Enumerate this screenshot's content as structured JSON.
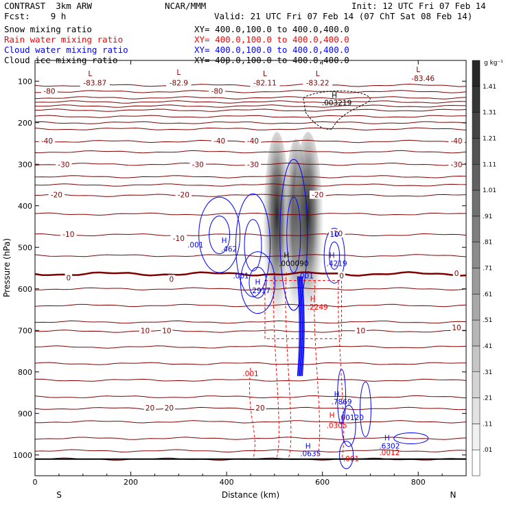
{
  "header": {
    "model": "CONTRAST  3km ARW",
    "org": "NCAR/MMM",
    "init": "Init: 12 UTC Fri 07 Feb 14",
    "fcst": "Fcst:    9 h",
    "valid": "Valid: 21 UTC Fri 07 Feb 14 (07 ChT Sat 08 Feb 14)",
    "fields": [
      {
        "name": "Snow mixing ratio",
        "xy": "XY= 400.0,100.0 to 400.0,400.0",
        "color": "#000000"
      },
      {
        "name": "Rain water mixing ratio",
        "xy": "XY= 400.0,100.0 to 400.0,400.0",
        "color": "#ff0000"
      },
      {
        "name": "Cloud water mixing ratio",
        "xy": "XY= 400.0,100.0 to 400.0,400.0",
        "color": "#0000ff"
      },
      {
        "name": "Cloud ice mixing ratio",
        "xy": "XY= 400.0,100.0 to 400.0,400.0",
        "color": "#000000"
      }
    ]
  },
  "chart_data": {
    "type": "cross-section contour",
    "xlabel": "Distance (km)",
    "ylabel": "Pressure (hPa)",
    "xlim": [
      0,
      900
    ],
    "ylim": [
      1050,
      50
    ],
    "x_ticks": [
      0,
      200,
      400,
      600,
      800
    ],
    "y_ticks": [
      100,
      200,
      300,
      400,
      500,
      600,
      700,
      800,
      900,
      1000
    ],
    "x_end_labels": {
      "left": "S",
      "right": "N"
    },
    "colorbar": {
      "unit": "g kg⁻¹",
      "levels": [
        ".01",
        ".11",
        ".21",
        ".31",
        ".41",
        ".51",
        ".61",
        ".71",
        ".81",
        ".91",
        "1.01",
        "1.11",
        "1.21",
        "1.31",
        "1.41"
      ]
    },
    "temperature_contours": {
      "color": "#800000",
      "bold_level": 0,
      "labels": [
        {
          "text": "-80",
          "x": 30,
          "p": 125
        },
        {
          "text": "-83.87",
          "x": 125,
          "p": 105
        },
        {
          "text": "-82.9",
          "x": 300,
          "p": 105
        },
        {
          "text": "-80",
          "x": 380,
          "p": 125
        },
        {
          "text": "-82.11",
          "x": 480,
          "p": 105
        },
        {
          "text": "-83.22",
          "x": 590,
          "p": 105
        },
        {
          "text": "-83.46",
          "x": 810,
          "p": 95
        },
        {
          "text": "-40",
          "x": 25,
          "p": 245
        },
        {
          "text": "-40",
          "x": 385,
          "p": 245
        },
        {
          "text": "-40",
          "x": 455,
          "p": 245
        },
        {
          "text": "-40",
          "x": 880,
          "p": 245
        },
        {
          "text": "-30",
          "x": 60,
          "p": 302
        },
        {
          "text": "-30",
          "x": 340,
          "p": 302
        },
        {
          "text": "-30",
          "x": 455,
          "p": 302
        },
        {
          "text": "-30",
          "x": 880,
          "p": 302
        },
        {
          "text": "-20",
          "x": 45,
          "p": 375
        },
        {
          "text": "-20",
          "x": 310,
          "p": 375
        },
        {
          "text": "-20",
          "x": 590,
          "p": 375
        },
        {
          "text": "-10",
          "x": 70,
          "p": 470
        },
        {
          "text": "-10",
          "x": 300,
          "p": 480
        },
        {
          "text": "-10",
          "x": 630,
          "p": 468
        },
        {
          "text": "0",
          "x": 70,
          "p": 575
        },
        {
          "text": "0",
          "x": 285,
          "p": 578
        },
        {
          "text": "0",
          "x": 640,
          "p": 570
        },
        {
          "text": "0",
          "x": 880,
          "p": 564
        },
        {
          "text": "10",
          "x": 230,
          "p": 702
        },
        {
          "text": "10",
          "x": 275,
          "p": 702
        },
        {
          "text": "10",
          "x": 680,
          "p": 702
        },
        {
          "text": "10",
          "x": 880,
          "p": 695
        },
        {
          "text": "20",
          "x": 240,
          "p": 888
        },
        {
          "text": "20",
          "x": 280,
          "p": 888
        },
        {
          "text": "20",
          "x": 470,
          "p": 888
        }
      ]
    },
    "maxima_labels": [
      {
        "text": "L",
        "x": 115,
        "p": 88,
        "color": "#800000"
      },
      {
        "text": "L",
        "x": 300,
        "p": 85,
        "color": "#800000"
      },
      {
        "text": "L",
        "x": 480,
        "p": 88,
        "color": "#800000"
      },
      {
        "text": "L",
        "x": 590,
        "p": 88,
        "color": "#800000"
      },
      {
        "text": "L",
        "x": 800,
        "p": 78,
        "color": "#800000"
      },
      {
        "text": "H",
        "x": 625,
        "p": 140,
        "color": "#000000"
      },
      {
        "text": ".003219",
        "x": 630,
        "p": 158,
        "color": "#000000"
      },
      {
        "text": "H",
        "x": 525,
        "p": 525,
        "color": "#000000"
      },
      {
        "text": ".000090",
        "x": 540,
        "p": 545,
        "color": "#000000"
      },
      {
        "text": "H",
        "x": 395,
        "p": 490,
        "color": "#0000ff"
      },
      {
        "text": ".462",
        "x": 405,
        "p": 510,
        "color": "#0000ff"
      },
      {
        "text": ".001",
        "x": 335,
        "p": 500,
        "color": "#0000ff"
      },
      {
        "text": ".001",
        "x": 430,
        "p": 575,
        "color": "#0000ff"
      },
      {
        "text": ".001",
        "x": 565,
        "p": 575,
        "color": "#0000ff"
      },
      {
        "text": "H",
        "x": 465,
        "p": 590,
        "color": "#0000ff"
      },
      {
        "text": ".2917",
        "x": 470,
        "p": 610,
        "color": "#0000ff"
      },
      {
        "text": "H",
        "x": 620,
        "p": 525,
        "color": "#0000ff"
      },
      {
        "text": ".4219",
        "x": 630,
        "p": 545,
        "color": "#0000ff"
      },
      {
        "text": "10",
        "x": 625,
        "p": 475,
        "color": "#0000ff"
      },
      {
        "text": "H",
        "x": 580,
        "p": 630,
        "color": "#ff0000"
      },
      {
        "text": ".2249",
        "x": 590,
        "p": 650,
        "color": "#ff0000"
      },
      {
        "text": ".001",
        "x": 450,
        "p": 810,
        "color": "#ff0000"
      },
      {
        "text": "H",
        "x": 630,
        "p": 860,
        "color": "#0000ff"
      },
      {
        "text": ".7869",
        "x": 640,
        "p": 878,
        "color": "#0000ff"
      },
      {
        "text": "H",
        "x": 620,
        "p": 910,
        "color": "#ff0000"
      },
      {
        "text": ".00120",
        "x": 660,
        "p": 916,
        "color": "#0000ff"
      },
      {
        "text": ".0305",
        "x": 630,
        "p": 935,
        "color": "#ff0000"
      },
      {
        "text": "H",
        "x": 735,
        "p": 965,
        "color": "#0000ff"
      },
      {
        "text": ".6302",
        "x": 740,
        "p": 985,
        "color": "#0000ff"
      },
      {
        "text": "H",
        "x": 570,
        "p": 985,
        "color": "#0000ff"
      },
      {
        "text": ".0635",
        "x": 575,
        "p": 1003,
        "color": "#0000ff"
      },
      {
        "text": ".0012",
        "x": 740,
        "p": 1000,
        "color": "#ff0000"
      },
      {
        "text": ".001",
        "x": 660,
        "p": 1015,
        "color": "#ff0000"
      }
    ]
  }
}
